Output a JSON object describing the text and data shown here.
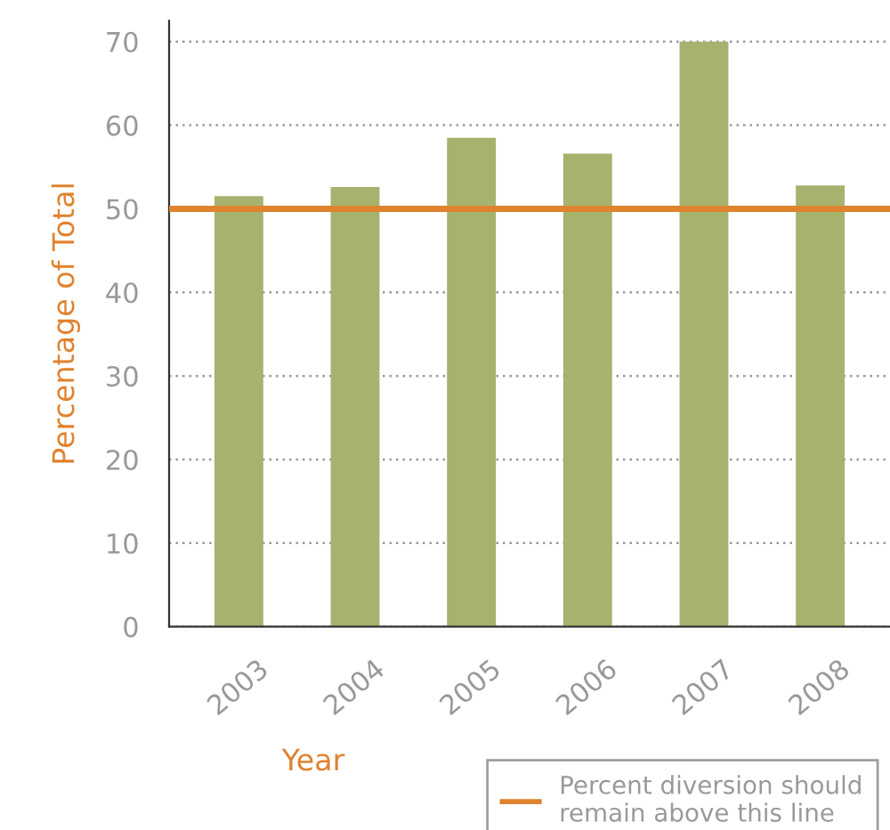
{
  "chart_data": {
    "type": "bar",
    "xlabel": "Year",
    "ylabel": "Percentage of Total",
    "categories": [
      "2003",
      "2004",
      "2005",
      "2006",
      "2007",
      "2008"
    ],
    "values": [
      51.5,
      52.6,
      58.5,
      56.6,
      70,
      52.8
    ],
    "color": "#a5b36e",
    "ylim": [
      0,
      72.5
    ],
    "yticks": [
      0,
      10,
      20,
      30,
      40,
      50,
      60,
      70
    ],
    "grid": "y",
    "ref_lines": [
      {
        "axis": "y",
        "value": 50,
        "label": "Percent diversion should\nremain above this line",
        "color": "#e0822e",
        "line_style": "solid"
      }
    ],
    "legend": "bottom right"
  }
}
